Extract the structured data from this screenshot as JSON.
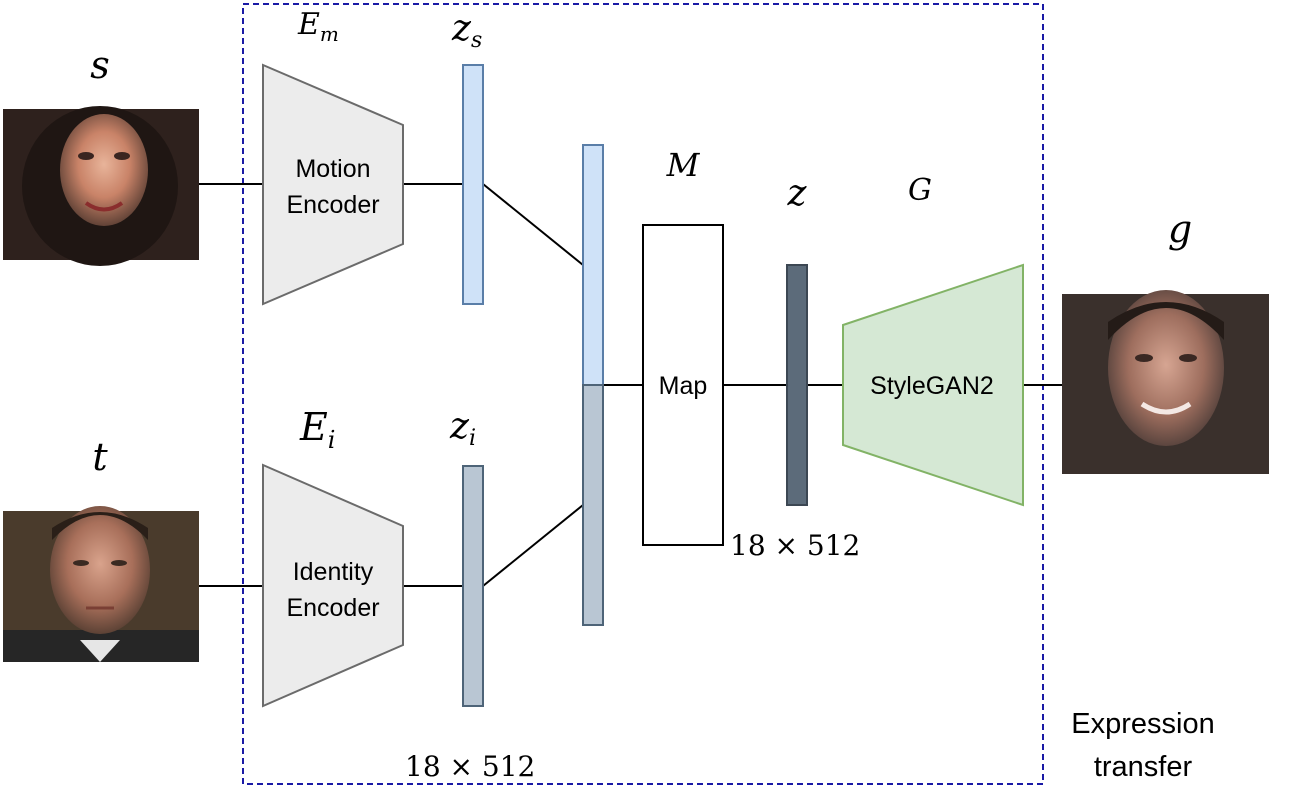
{
  "labels": {
    "source": "s",
    "target": "t",
    "generated": "g",
    "motion_encoder_symbol": "E",
    "motion_encoder_sub": "m",
    "identity_encoder_symbol": "E",
    "identity_encoder_sub": "i",
    "zs_symbol": "z",
    "zs_sub": "s",
    "zi_symbol": "z",
    "zi_sub": "i",
    "map_symbol": "M",
    "latent": "z",
    "generator_symbol": "G"
  },
  "blocks": {
    "motion_encoder_line1": "Motion",
    "motion_encoder_line2": "Encoder",
    "identity_encoder_line1": "Identity",
    "identity_encoder_line2": "Encoder",
    "map": "Map",
    "stylegan": "StyleGAN2"
  },
  "dims": {
    "map_out": "18 × 512",
    "identity_out": "18 × 512"
  },
  "caption": {
    "line1": "Expression",
    "line2": "transfer"
  },
  "colors": {
    "encoder_fill": "#ececec",
    "encoder_stroke": "#6b6b6b",
    "zs_fill": "#cfe2f8",
    "zs_stroke": "#5a7ea8",
    "zi_fill": "#b9c6d3",
    "zi_stroke": "#4e6478",
    "z_fill": "#5c6b7a",
    "z_stroke": "#3c4753",
    "stylegan_fill": "#d5e8d4",
    "stylegan_stroke": "#82b366",
    "frame": "#1a1aa6"
  }
}
